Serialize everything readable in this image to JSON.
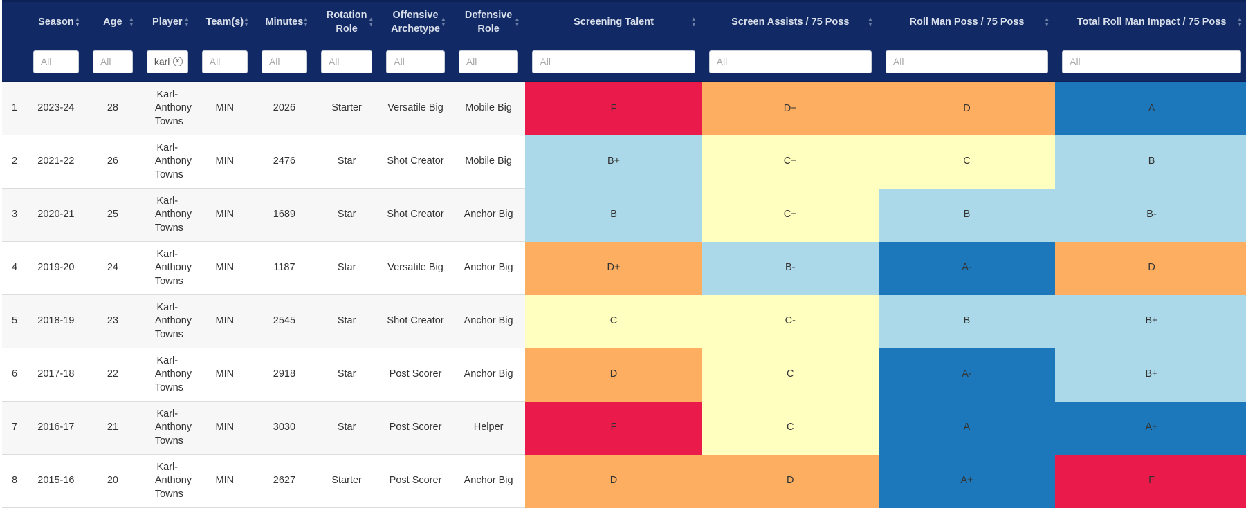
{
  "columns": [
    {
      "label": "",
      "filter": false
    },
    {
      "label": "Season",
      "filter": true,
      "placeholder": "All",
      "value": ""
    },
    {
      "label": "Age",
      "filter": true,
      "placeholder": "All",
      "value": ""
    },
    {
      "label": "Player",
      "filter": true,
      "placeholder": "All",
      "value": "karl"
    },
    {
      "label": "Team(s)",
      "filter": true,
      "placeholder": "All",
      "value": ""
    },
    {
      "label": "Minutes",
      "filter": true,
      "placeholder": "All",
      "value": ""
    },
    {
      "label": "Rotation Role",
      "filter": true,
      "placeholder": "All",
      "value": ""
    },
    {
      "label": "Offensive Archetype",
      "filter": true,
      "placeholder": "All",
      "value": ""
    },
    {
      "label": "Defensive Role",
      "filter": true,
      "placeholder": "All",
      "value": ""
    },
    {
      "label": "Screening Talent",
      "filter": true,
      "placeholder": "All",
      "value": ""
    },
    {
      "label": "Screen Assists / 75 Poss",
      "filter": true,
      "placeholder": "All",
      "value": ""
    },
    {
      "label": "Roll Man Poss / 75 Poss",
      "filter": true,
      "placeholder": "All",
      "value": ""
    },
    {
      "label": "Total Roll Man Impact / 75 Poss",
      "filter": true,
      "placeholder": "All",
      "value": ""
    }
  ],
  "sort": {
    "column": "Season",
    "direction": "desc"
  },
  "grade_colors": {
    "A+": "#1c78ba",
    "A": "#1c78ba",
    "A-": "#1c78ba",
    "B+": "#abd9e9",
    "B": "#abd9e9",
    "B-": "#abd9e9",
    "C+": "#ffffbf",
    "C": "#ffffbf",
    "C-": "#ffffbf",
    "D+": "#fdae61",
    "D": "#fdae61",
    "D-": "#fdae61",
    "F": "#ea1a4b"
  },
  "rows": [
    {
      "rank": "1",
      "season": "2023-24",
      "age": "28",
      "player": "Karl-Anthony Towns",
      "team": "MIN",
      "minutes": "2026",
      "rotation_role": "Starter",
      "off_archetype": "Versatile Big",
      "def_role": "Mobile Big",
      "screening_talent": "F",
      "screen_assists": "D+",
      "roll_man_poss": "D",
      "roll_man_impact": "A"
    },
    {
      "rank": "2",
      "season": "2021-22",
      "age": "26",
      "player": "Karl-Anthony Towns",
      "team": "MIN",
      "minutes": "2476",
      "rotation_role": "Star",
      "off_archetype": "Shot Creator",
      "def_role": "Mobile Big",
      "screening_talent": "B+",
      "screen_assists": "C+",
      "roll_man_poss": "C",
      "roll_man_impact": "B"
    },
    {
      "rank": "3",
      "season": "2020-21",
      "age": "25",
      "player": "Karl-Anthony Towns",
      "team": "MIN",
      "minutes": "1689",
      "rotation_role": "Star",
      "off_archetype": "Shot Creator",
      "def_role": "Anchor Big",
      "screening_talent": "B",
      "screen_assists": "C+",
      "roll_man_poss": "B",
      "roll_man_impact": "B-"
    },
    {
      "rank": "4",
      "season": "2019-20",
      "age": "24",
      "player": "Karl-Anthony Towns",
      "team": "MIN",
      "minutes": "1187",
      "rotation_role": "Star",
      "off_archetype": "Versatile Big",
      "def_role": "Anchor Big",
      "screening_talent": "D+",
      "screen_assists": "B-",
      "roll_man_poss": "A-",
      "roll_man_impact": "D"
    },
    {
      "rank": "5",
      "season": "2018-19",
      "age": "23",
      "player": "Karl-Anthony Towns",
      "team": "MIN",
      "minutes": "2545",
      "rotation_role": "Star",
      "off_archetype": "Shot Creator",
      "def_role": "Anchor Big",
      "screening_talent": "C",
      "screen_assists": "C-",
      "roll_man_poss": "B",
      "roll_man_impact": "B+"
    },
    {
      "rank": "6",
      "season": "2017-18",
      "age": "22",
      "player": "Karl-Anthony Towns",
      "team": "MIN",
      "minutes": "2918",
      "rotation_role": "Star",
      "off_archetype": "Post Scorer",
      "def_role": "Anchor Big",
      "screening_talent": "D",
      "screen_assists": "C",
      "roll_man_poss": "A-",
      "roll_man_impact": "B+"
    },
    {
      "rank": "7",
      "season": "2016-17",
      "age": "21",
      "player": "Karl-Anthony Towns",
      "team": "MIN",
      "minutes": "3030",
      "rotation_role": "Star",
      "off_archetype": "Post Scorer",
      "def_role": "Helper",
      "screening_talent": "F",
      "screen_assists": "C",
      "roll_man_poss": "A",
      "roll_man_impact": "A+"
    },
    {
      "rank": "8",
      "season": "2015-16",
      "age": "20",
      "player": "Karl-Anthony Towns",
      "team": "MIN",
      "minutes": "2627",
      "rotation_role": "Starter",
      "off_archetype": "Post Scorer",
      "def_role": "Anchor Big",
      "screening_talent": "D",
      "screen_assists": "D",
      "roll_man_poss": "A+",
      "roll_man_impact": "F"
    }
  ]
}
